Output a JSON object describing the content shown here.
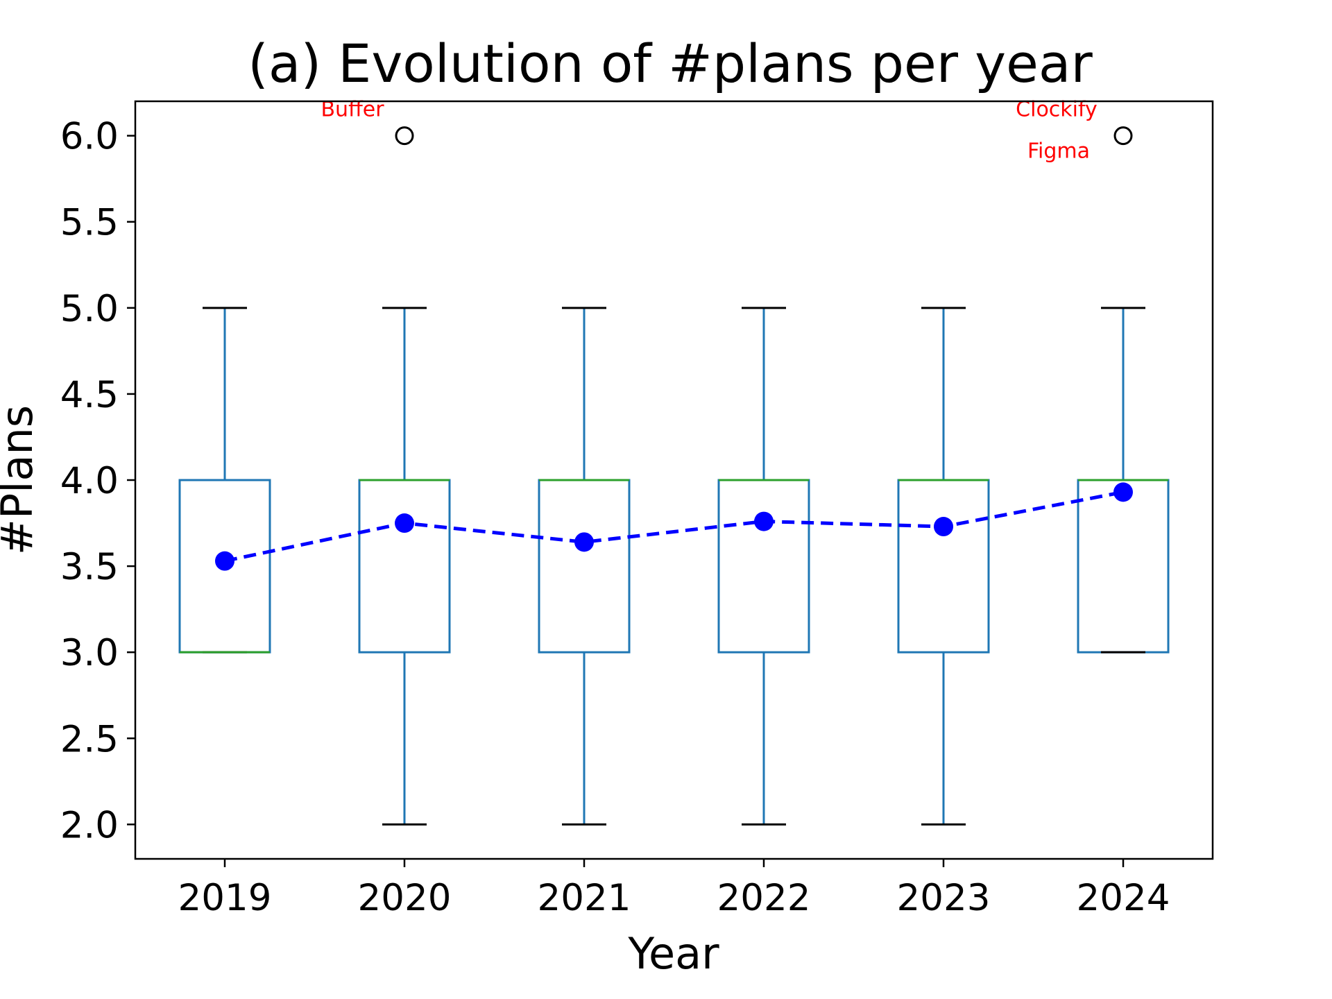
{
  "chart_data": {
    "type": "box",
    "title": "(a) Evolution of #plans per year",
    "xlabel": "Year",
    "ylabel": "#Plans",
    "categories": [
      "2019",
      "2020",
      "2021",
      "2022",
      "2023",
      "2024"
    ],
    "ylim": [
      1.8,
      6.2
    ],
    "yticks": [
      2.0,
      2.5,
      3.0,
      3.5,
      4.0,
      4.5,
      5.0,
      5.5,
      6.0
    ],
    "ytick_labels": [
      "2.0",
      "2.5",
      "3.0",
      "3.5",
      "4.0",
      "4.5",
      "5.0",
      "5.5",
      "6.0"
    ],
    "grid": false,
    "boxes": [
      {
        "category": "2019",
        "whisker_low": 3.0,
        "q1": 3.0,
        "median": 3.0,
        "q3": 4.0,
        "whisker_high": 5.0,
        "outliers": []
      },
      {
        "category": "2020",
        "whisker_low": 2.0,
        "q1": 3.0,
        "median": 4.0,
        "q3": 4.0,
        "whisker_high": 5.0,
        "outliers": [
          6.0
        ]
      },
      {
        "category": "2021",
        "whisker_low": 2.0,
        "q1": 3.0,
        "median": 4.0,
        "q3": 4.0,
        "whisker_high": 5.0,
        "outliers": []
      },
      {
        "category": "2022",
        "whisker_low": 2.0,
        "q1": 3.0,
        "median": 4.0,
        "q3": 4.0,
        "whisker_high": 5.0,
        "outliers": []
      },
      {
        "category": "2023",
        "whisker_low": 2.0,
        "q1": 3.0,
        "median": 4.0,
        "q3": 4.0,
        "whisker_high": 5.0,
        "outliers": []
      },
      {
        "category": "2024",
        "whisker_low": 3.0,
        "q1": 3.0,
        "median": 4.0,
        "q3": 4.0,
        "whisker_high": 5.0,
        "outliers": [
          6.0
        ]
      }
    ],
    "mean_line": {
      "values": [
        3.53,
        3.75,
        3.64,
        3.76,
        3.73,
        3.93
      ],
      "color": "#0000ff",
      "style": "dashed"
    },
    "annotations": [
      {
        "text": "Buffer",
        "category": "2020",
        "y": 6.0
      },
      {
        "text": "Clockify",
        "category": "2024",
        "y": 6.0
      },
      {
        "text": "Figma",
        "category": "2024",
        "y": 6.0
      }
    ],
    "colors": {
      "box": "#1f77b4",
      "median": "#2ca02c",
      "whisker_cap": "#000000",
      "mean": "#0000ff",
      "annotation": "#ff0000"
    }
  }
}
